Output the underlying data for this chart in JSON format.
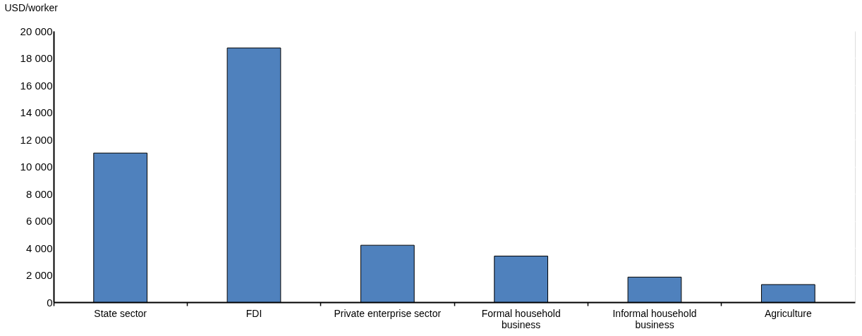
{
  "chart_data": {
    "type": "bar",
    "ylabel": "USD/worker",
    "categories": [
      "State sector",
      "FDI",
      "Private enterprise sector",
      "Formal household\nbusiness",
      "Informal household\nbusiness",
      "Agriculture"
    ],
    "values": [
      11000,
      18750,
      4200,
      3400,
      1850,
      1300
    ],
    "color": "#4f81bd",
    "ylim": [
      0,
      20000
    ],
    "yticks": [
      {
        "value": 0,
        "label": "0"
      },
      {
        "value": 2000,
        "label": "2 000"
      },
      {
        "value": 4000,
        "label": "4 000"
      },
      {
        "value": 6000,
        "label": "6 000"
      },
      {
        "value": 8000,
        "label": "8 000"
      },
      {
        "value": 10000,
        "label": "10 000"
      },
      {
        "value": 12000,
        "label": "12 000"
      },
      {
        "value": 14000,
        "label": "14 000"
      },
      {
        "value": 16000,
        "label": "16 000"
      },
      {
        "value": 18000,
        "label": "18 000"
      },
      {
        "value": 20000,
        "label": "20 000"
      }
    ],
    "grid": true
  }
}
